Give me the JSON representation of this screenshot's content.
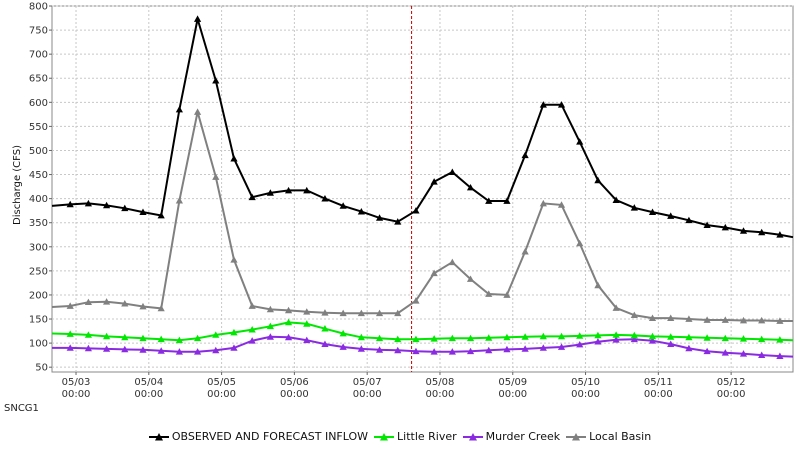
{
  "station_label": "SNCG1",
  "chart_data": {
    "type": "line",
    "ylabel": "Discharge (CFS)",
    "xlabel": "",
    "ylim": [
      40,
      800
    ],
    "yticks": [
      50,
      100,
      150,
      200,
      250,
      300,
      350,
      400,
      450,
      500,
      550,
      600,
      650,
      700,
      750,
      800
    ],
    "xlim": [
      0.67,
      10.85
    ],
    "xticks": [
      {
        "x": 1,
        "date": "05/03",
        "time": "00:00"
      },
      {
        "x": 2,
        "date": "05/04",
        "time": "00:00"
      },
      {
        "x": 3,
        "date": "05/05",
        "time": "00:00"
      },
      {
        "x": 4,
        "date": "05/06",
        "time": "00:00"
      },
      {
        "x": 5,
        "date": "05/07",
        "time": "00:00"
      },
      {
        "x": 6,
        "date": "05/08",
        "time": "00:00"
      },
      {
        "x": 7,
        "date": "05/09",
        "time": "00:00"
      },
      {
        "x": 8,
        "date": "05/10",
        "time": "00:00"
      },
      {
        "x": 9,
        "date": "05/11",
        "time": "00:00"
      },
      {
        "x": 10,
        "date": "05/12",
        "time": "00:00"
      }
    ],
    "forecast_line_x": 5.61,
    "grid": true,
    "legend_position": "bottom",
    "x": [
      0.67,
      0.92,
      1.17,
      1.42,
      1.67,
      1.92,
      2.17,
      2.42,
      2.67,
      2.92,
      3.17,
      3.42,
      3.67,
      3.92,
      4.17,
      4.42,
      4.67,
      4.92,
      5.17,
      5.42,
      5.67,
      5.92,
      6.17,
      6.42,
      6.67,
      6.92,
      7.17,
      7.42,
      7.67,
      7.92,
      8.17,
      8.42,
      8.67,
      8.92,
      9.17,
      9.42,
      9.67,
      9.92,
      10.17,
      10.42,
      10.67,
      10.85
    ],
    "series": [
      {
        "name": "OBSERVED AND FORECAST INFLOW",
        "color": "#000000",
        "values": [
          385,
          388,
          390,
          386,
          380,
          372,
          365,
          585,
          773,
          645,
          483,
          403,
          412,
          417,
          417,
          400,
          385,
          373,
          360,
          352,
          375,
          435,
          455,
          423,
          395,
          395,
          490,
          595,
          595,
          518,
          438,
          397,
          381,
          372,
          364,
          355,
          345,
          340,
          333,
          330,
          325,
          320
        ]
      },
      {
        "name": "Little River",
        "color": "#00e800",
        "values": [
          120,
          119,
          117,
          114,
          112,
          110,
          108,
          106,
          110,
          117,
          122,
          128,
          135,
          143,
          140,
          130,
          120,
          112,
          110,
          108,
          108,
          109,
          110,
          110,
          111,
          112,
          113,
          114,
          114,
          115,
          116,
          117,
          116,
          114,
          113,
          112,
          111,
          110,
          109,
          108,
          107,
          106
        ]
      },
      {
        "name": "Murder Creek",
        "color": "#8a2be2",
        "values": [
          90,
          90,
          89,
          88,
          87,
          86,
          84,
          82,
          82,
          85,
          90,
          105,
          113,
          112,
          106,
          98,
          92,
          88,
          86,
          85,
          83,
          82,
          82,
          83,
          85,
          87,
          88,
          90,
          92,
          97,
          103,
          107,
          108,
          105,
          98,
          89,
          83,
          80,
          78,
          75,
          73,
          72
        ]
      },
      {
        "name": "Local Basin",
        "color": "#808080",
        "values": [
          175,
          177,
          185,
          186,
          182,
          176,
          172,
          396,
          580,
          445,
          273,
          177,
          170,
          168,
          165,
          163,
          162,
          162,
          162,
          162,
          188,
          245,
          268,
          233,
          202,
          200,
          290,
          390,
          387,
          307,
          220,
          173,
          158,
          152,
          152,
          150,
          148,
          148,
          147,
          147,
          146,
          146
        ]
      }
    ]
  }
}
